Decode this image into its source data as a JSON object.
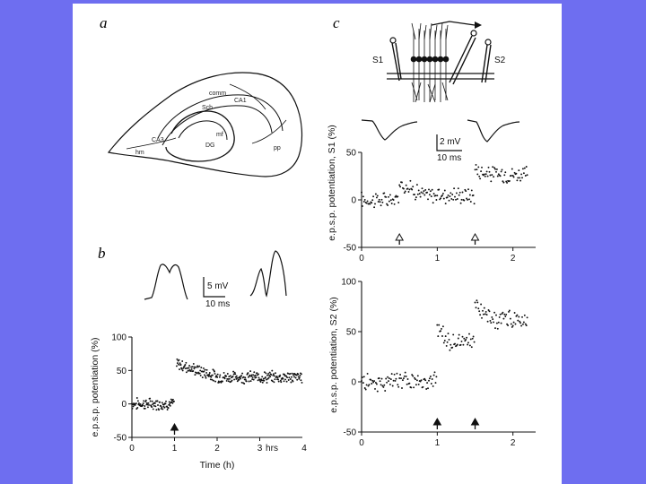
{
  "panels": {
    "a": {
      "letter": "a",
      "anatomy_labels": [
        "comm",
        "CA1",
        "Sch",
        "CA3",
        "mf",
        "DG",
        "pp",
        "hm"
      ]
    },
    "b": {
      "letter": "b",
      "scale_bar": {
        "amplitude": "5 mV",
        "time": "10 ms"
      }
    },
    "c": {
      "letter": "c",
      "electrodes": {
        "left": "S1",
        "right": "S2"
      },
      "scale_bar": {
        "amplitude": "2 mV",
        "time": "10 ms"
      }
    }
  },
  "chart_data": [
    {
      "id": "b",
      "type": "scatter",
      "title": "",
      "xlabel": "Time (h)",
      "ylabel": "e.p.s.p. potentiation (%)",
      "xlim": [
        0,
        4
      ],
      "ylim": [
        -50,
        100
      ],
      "x_ticks": [
        0,
        1,
        2,
        3
      ],
      "x_tick_labels": [
        "0",
        "1",
        "2",
        "3"
      ],
      "x_unit_label": "hrs",
      "x_end_label": "4",
      "y_ticks": [
        -50,
        0,
        50,
        100
      ],
      "y_tick_labels": [
        "-50",
        "0",
        "50",
        "100"
      ],
      "stimulus_arrows": [
        {
          "x": 1,
          "style": "filled"
        }
      ],
      "segments": [
        {
          "x_start": 0.0,
          "x_end": 1.0,
          "mean": 0
        },
        {
          "x_start": 1.05,
          "x_end": 4.0,
          "mean_start": 60,
          "mean": 40
        }
      ]
    },
    {
      "id": "c-top",
      "type": "scatter",
      "title": "",
      "xlabel": "",
      "ylabel": "e.p.s.p. potentiation, S1 (%)",
      "xlim": [
        0,
        2.3
      ],
      "ylim": [
        -50,
        50
      ],
      "x_ticks": [
        0,
        1,
        2
      ],
      "x_tick_labels": [
        "0",
        "1",
        "2"
      ],
      "y_ticks": [
        -50,
        0,
        50
      ],
      "y_tick_labels": [
        "-50",
        "0",
        "50"
      ],
      "stimulus_arrows": [
        {
          "x": 0.5,
          "style": "open"
        },
        {
          "x": 1.5,
          "style": "open"
        }
      ],
      "segments": [
        {
          "x_start": 0.0,
          "x_end": 0.5,
          "mean": 0
        },
        {
          "x_start": 0.5,
          "x_end": 1.5,
          "mean_start": 18,
          "mean": 5
        },
        {
          "x_start": 1.5,
          "x_end": 2.2,
          "mean_start": 32,
          "mean": 27
        }
      ]
    },
    {
      "id": "c-bottom",
      "type": "scatter",
      "title": "",
      "xlabel": "",
      "ylabel": "e.p.s.p. potentiation, S2 (%)",
      "xlim": [
        0,
        2.3
      ],
      "ylim": [
        -50,
        100
      ],
      "x_ticks": [
        0,
        1,
        2
      ],
      "x_tick_labels": [
        "0",
        "1",
        "2"
      ],
      "y_ticks": [
        -50,
        0,
        50,
        100
      ],
      "y_tick_labels": [
        "-50",
        "0",
        "50",
        "100"
      ],
      "stimulus_arrows": [
        {
          "x": 1.0,
          "style": "filled"
        },
        {
          "x": 1.5,
          "style": "filled"
        }
      ],
      "segments": [
        {
          "x_start": 0.0,
          "x_end": 1.0,
          "mean": 0
        },
        {
          "x_start": 1.0,
          "x_end": 1.5,
          "mean_start": 52,
          "mean": 40
        },
        {
          "x_start": 1.5,
          "x_end": 2.2,
          "mean_start": 75,
          "mean": 62
        }
      ]
    }
  ]
}
